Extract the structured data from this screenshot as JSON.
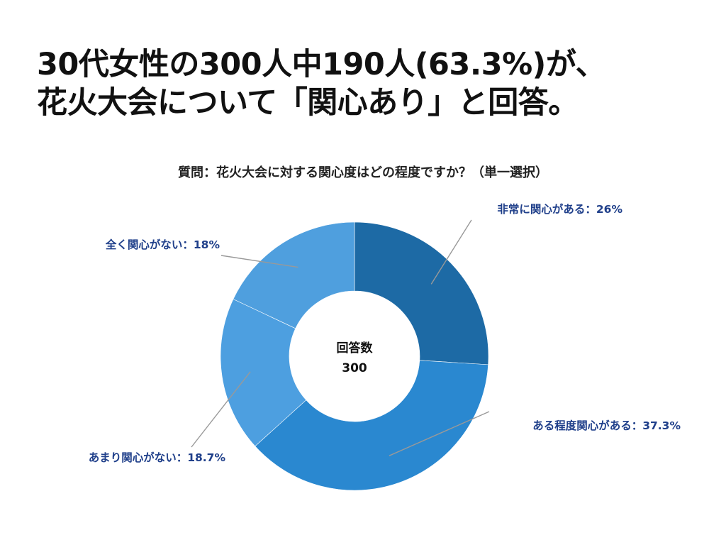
{
  "headline": {
    "line1": "30代女性の300人中190人(63.3%)が、",
    "line2": "花火大会について「関心あり」と回答。"
  },
  "question": "質問：花火大会に対する関心度はどの程度ですか？（単一選択）",
  "chart_data": {
    "type": "pie",
    "donut": true,
    "title": "",
    "center_label": "回答数",
    "center_value": "300",
    "slices": [
      {
        "label": "非常に関心がある：26%",
        "value": 26.0,
        "color": "#1d6aa5"
      },
      {
        "label": "ある程度関心がある：37.3%",
        "value": 37.3,
        "color": "#2a88d0"
      },
      {
        "label": "あまり関心がない：18.7%",
        "value": 18.7,
        "color": "#4d9fe0"
      },
      {
        "label": "全く関心がない：18%",
        "value": 18.0,
        "color": "#4f9fde"
      }
    ],
    "label_color": "#1f3f8a",
    "leader_color": "#999999"
  }
}
